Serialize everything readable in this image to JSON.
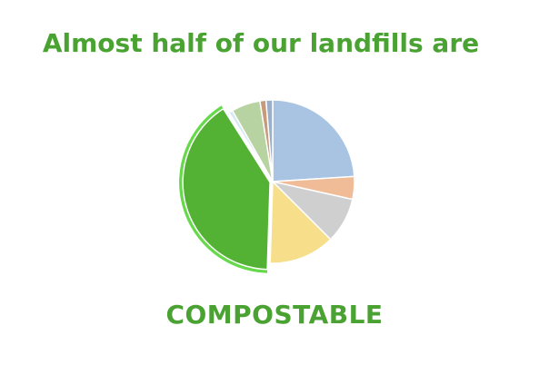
{
  "slide": {
    "headline": "Almost half of our landfills are",
    "subline": "COMPOSTABLE"
  },
  "chart_data": {
    "type": "pie",
    "title": "",
    "start_angle_deg": 0,
    "slices": [
      {
        "name": "slice-1",
        "value": 24.0,
        "color": "#a9c4e3"
      },
      {
        "name": "slice-2",
        "value": 4.5,
        "color": "#efbc97"
      },
      {
        "name": "slice-3",
        "value": 9.0,
        "color": "#cfcfcf"
      },
      {
        "name": "slice-4",
        "value": 13.0,
        "color": "#f7de8a"
      },
      {
        "name": "slice-5-compostable",
        "value": 40.5,
        "color": "#53b234",
        "highlighted": true
      },
      {
        "name": "slice-6",
        "value": 0.8,
        "color": "#d6e9f4"
      },
      {
        "name": "slice-7",
        "value": 5.7,
        "color": "#b8d3a2"
      },
      {
        "name": "slice-8",
        "value": 1.2,
        "color": "#c69a7a"
      },
      {
        "name": "slice-9",
        "value": 1.3,
        "color": "#9bb0c8"
      }
    ]
  }
}
